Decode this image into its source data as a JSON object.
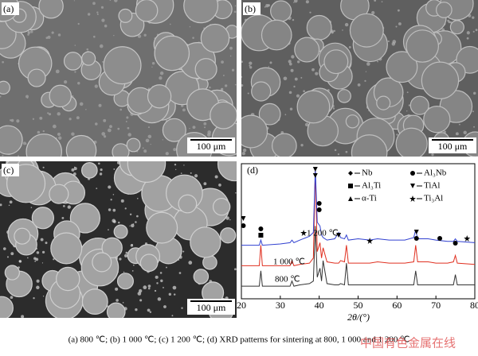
{
  "panels": [
    {
      "label": "(a)",
      "scale_bar": "100 μm"
    },
    {
      "label": "(b)",
      "scale_bar": "100 μm"
    },
    {
      "label": "(c)",
      "scale_bar": "100 μm"
    }
  ],
  "chart_data": {
    "type": "line",
    "label": "(d)",
    "xlabel": "2θ/(°)",
    "xlim": [
      20,
      80
    ],
    "xticks": [
      20,
      30,
      40,
      50,
      60,
      70,
      80
    ],
    "ylim": [
      0,
      100
    ],
    "phases": [
      "Nb",
      "Al₃Nb",
      "Al₃Ti",
      "TiAl",
      "α-Ti",
      "Ti₃Al"
    ],
    "x": [
      20,
      24,
      24.6,
      25,
      25.4,
      30,
      32.5,
      33,
      33.5,
      35,
      37.5,
      38.5,
      39,
      39.5,
      40.2,
      40.6,
      41,
      42,
      44,
      45,
      45.5,
      46.5,
      47,
      47.5,
      50,
      53,
      55,
      58,
      62,
      64.3,
      64.8,
      65.3,
      68,
      70,
      73,
      74.5,
      75,
      75.5,
      80
    ],
    "series": [
      {
        "name": "800 ℃",
        "color": "#333333",
        "values": [
          8,
          8,
          8,
          20,
          8,
          8,
          8,
          12,
          8,
          9,
          10,
          12,
          55,
          15,
          22,
          12,
          28,
          10,
          9,
          9,
          10,
          9,
          26,
          9,
          9,
          9,
          9,
          9,
          9,
          9,
          20,
          9,
          9,
          9,
          9,
          9,
          17,
          9,
          9
        ]
      },
      {
        "name": "1 000 ℃",
        "color": "#e03020",
        "values": [
          24,
          24,
          24,
          40,
          24,
          24,
          24,
          28,
          24,
          25,
          26,
          30,
          98,
          35,
          42,
          30,
          38,
          27,
          26,
          26,
          28,
          27,
          40,
          26,
          26,
          26,
          27,
          26,
          26,
          27,
          40,
          27,
          27,
          26,
          26,
          27,
          32,
          26,
          25
        ]
      },
      {
        "name": "1 200 ℃",
        "color": "#3040d0",
        "values": [
          40,
          40,
          40,
          44,
          40,
          41,
          42,
          44,
          42,
          44,
          47,
          50,
          100,
          58,
          55,
          48,
          46,
          44,
          45,
          50,
          46,
          45,
          48,
          44,
          45,
          44,
          45,
          44,
          44,
          46,
          52,
          45,
          45,
          44,
          43,
          43,
          45,
          43,
          42
        ]
      }
    ]
  },
  "caption": "(a) 800 ℃; (b) 1 000 ℃; (c) 1 200 ℃; (d) XRD patterns for sintering at 800, 1 000 and 1 200 ℃",
  "watermark": "中国有色金属在线"
}
